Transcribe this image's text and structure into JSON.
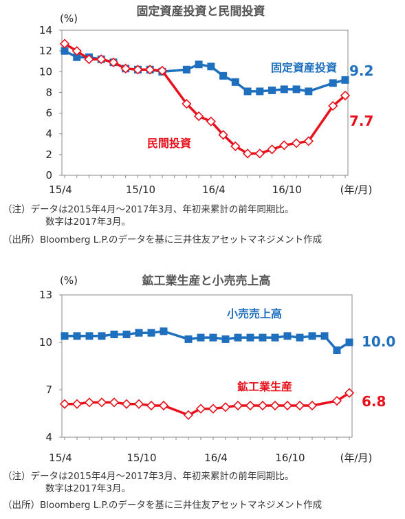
{
  "chart_data": [
    {
      "type": "line",
      "title": "固定資産投資と民間投資",
      "unit_label": "(%)",
      "x_unit_label": "(年/月)",
      "ylim": [
        0,
        14
      ],
      "yticks": [
        0,
        2,
        4,
        6,
        8,
        10,
        12,
        14
      ],
      "xtick_labels": [
        {
          "index": 0,
          "label": "15/4"
        },
        {
          "index": 6,
          "label": "15/10"
        },
        {
          "index": 12,
          "label": "16/4"
        },
        {
          "index": 18,
          "label": "16/10"
        }
      ],
      "x": [
        "15/4",
        "15/5",
        "15/6",
        "15/7",
        "15/8",
        "15/9",
        "15/10",
        "15/11",
        "15/12",
        "16/1",
        "16/2",
        "16/3",
        "16/4",
        "16/5",
        "16/6",
        "16/7",
        "16/8",
        "16/9",
        "16/10",
        "16/11",
        "16/12",
        "17/1",
        "17/2",
        "17/3"
      ],
      "grid": false,
      "series": [
        {
          "name": "固定資産投資",
          "color": "#1f6fbf",
          "marker": "square-filled",
          "end_label": "9.2",
          "values": [
            12.0,
            11.4,
            11.4,
            11.2,
            10.9,
            10.3,
            10.2,
            10.2,
            10.0,
            null,
            10.2,
            10.7,
            10.5,
            9.6,
            9.0,
            8.1,
            8.1,
            8.2,
            8.3,
            8.3,
            8.1,
            null,
            8.9,
            9.2
          ]
        },
        {
          "name": "民間投資",
          "color": "#e8101a",
          "marker": "diamond-open",
          "end_label": "7.7",
          "values": [
            12.7,
            12.0,
            11.2,
            11.2,
            10.9,
            10.3,
            10.2,
            10.2,
            10.1,
            null,
            6.9,
            5.7,
            5.2,
            3.9,
            2.8,
            2.1,
            2.1,
            2.5,
            2.9,
            3.1,
            3.3,
            null,
            6.7,
            7.7
          ]
        }
      ],
      "notes": [
        "（注）データは2015年4月～2017年3月、年初来累計の前年同期比。",
        "数字は2017年3月。",
        "（出所）Bloomberg L.P.のデータを基に三井住友アセットマネジメント作成"
      ]
    },
    {
      "type": "line",
      "title": "鉱工業生産と小売売上高",
      "unit_label": "(%)",
      "x_unit_label": "(年/月)",
      "ylim": [
        4,
        13
      ],
      "yticks": [
        4,
        7,
        10,
        13
      ],
      "xtick_labels": [
        {
          "index": 0,
          "label": "15/4"
        },
        {
          "index": 6,
          "label": "15/10"
        },
        {
          "index": 12,
          "label": "16/4"
        },
        {
          "index": 18,
          "label": "16/10"
        }
      ],
      "x": [
        "15/4",
        "15/5",
        "15/6",
        "15/7",
        "15/8",
        "15/9",
        "15/10",
        "15/11",
        "15/12",
        "16/1",
        "16/2",
        "16/3",
        "16/4",
        "16/5",
        "16/6",
        "16/7",
        "16/8",
        "16/9",
        "16/10",
        "16/11",
        "16/12",
        "17/1",
        "17/2",
        "17/3"
      ],
      "grid": false,
      "series": [
        {
          "name": "小売売上高",
          "color": "#1f6fbf",
          "marker": "square-filled",
          "end_label": "10.0",
          "values": [
            10.4,
            10.4,
            10.4,
            10.4,
            10.5,
            10.5,
            10.6,
            10.6,
            10.7,
            null,
            10.2,
            10.3,
            10.3,
            10.2,
            10.3,
            10.3,
            10.3,
            10.3,
            10.4,
            10.3,
            10.4,
            10.4,
            9.5,
            10.0
          ]
        },
        {
          "name": "鉱工業生産",
          "color": "#e8101a",
          "marker": "diamond-open",
          "end_label": "6.8",
          "values": [
            6.1,
            6.1,
            6.2,
            6.2,
            6.2,
            6.1,
            6.1,
            6.0,
            6.0,
            null,
            5.4,
            5.8,
            5.8,
            5.9,
            6.0,
            6.0,
            6.0,
            6.0,
            6.0,
            6.0,
            6.0,
            null,
            6.3,
            6.8
          ]
        }
      ],
      "notes": [
        "（注）データは2015年4月～2017年3月、年初来累計の前年同期比。",
        "数字は2017年3月。",
        "（出所）Bloomberg L.P.のデータを基に三井住友アセットマネジメント作成"
      ]
    }
  ]
}
